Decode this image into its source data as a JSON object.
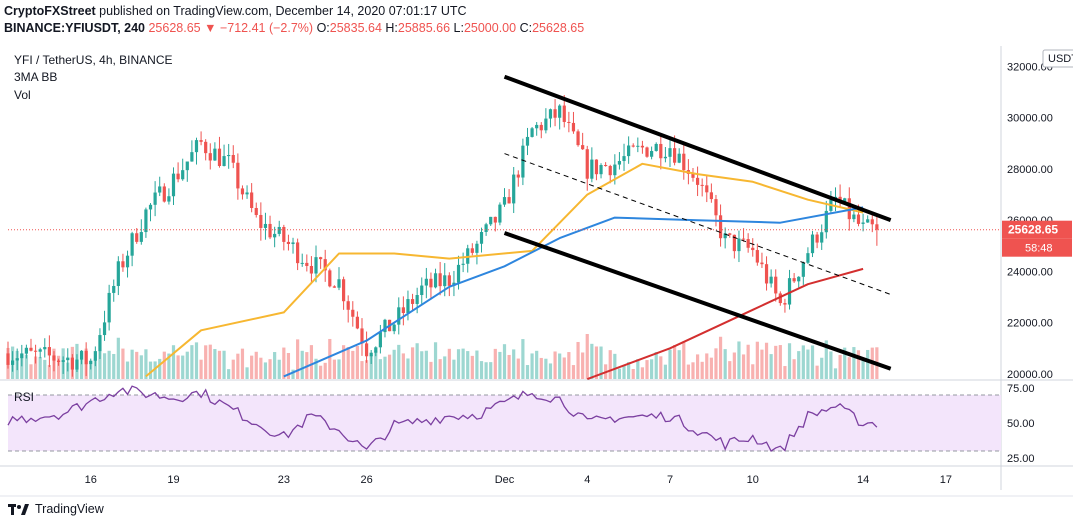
{
  "header": {
    "publisher": "CryptoFXStreet",
    "published_text": "published on TradingView.com, December 14, 2020 07:01:17 UTC",
    "symbol_line": "BINANCE:YFIUSDT, 240",
    "last": "25628.65",
    "change": "▼ −712.41 (−2.7%)",
    "o_label": "O:",
    "o": "25835.64",
    "h_label": "H:",
    "h": "25885.66",
    "l_label": "L:",
    "l": "25000.00",
    "c_label": "C:",
    "c": "25628.65"
  },
  "legend": {
    "pair": "YFI / TetherUS, 4h, BINANCE",
    "indicator": "3MA BB",
    "volume": "Vol",
    "rsi": "RSI"
  },
  "currency_badge": "USDT",
  "price_badge": "25628.65",
  "countdown_badge": "58:48",
  "branding": "TradingView",
  "colors": {
    "up": "#26a69a",
    "down": "#ef5350",
    "ma_fast": "#f7b731",
    "ma_mid": "#2e86de",
    "ma_slow": "#d32f2f",
    "rsi_line": "#7b3fa0",
    "rsi_band": "#f3e5fb"
  },
  "chart_data": [
    {
      "type": "candlestick",
      "title": "YFI / TetherUS, 4h, BINANCE",
      "y_axis_ticks": [
        "32000.00",
        "30000.00",
        "28000.00",
        "26000.00",
        "24000.00",
        "22000.00",
        "20000.00"
      ],
      "ylim": [
        19800,
        32800
      ],
      "x_ticks": [
        "16",
        "19",
        "23",
        "26",
        "Dec",
        "4",
        "7",
        "10",
        "14",
        "17"
      ],
      "x_tick_dates": [
        "2020-11-16",
        "2020-11-19",
        "2020-11-23",
        "2020-11-26",
        "2020-12-01",
        "2020-12-04",
        "2020-12-07",
        "2020-12-10",
        "2020-12-14",
        "2020-12-17"
      ],
      "x_range_dates": [
        "2020-11-13",
        "2020-12-19"
      ],
      "last_price": 25628.65,
      "price_path": [
        {
          "date": "2020-11-13",
          "value": 20800
        },
        {
          "date": "2020-11-16",
          "value": 20500
        },
        {
          "date": "2020-11-17",
          "value": 24000
        },
        {
          "date": "2020-11-18",
          "value": 26300
        },
        {
          "date": "2020-11-19",
          "value": 27600
        },
        {
          "date": "2020-11-20",
          "value": 29000
        },
        {
          "date": "2020-11-21",
          "value": 28200
        },
        {
          "date": "2020-11-22",
          "value": 26000
        },
        {
          "date": "2020-11-23",
          "value": 25200
        },
        {
          "date": "2020-11-24",
          "value": 24300
        },
        {
          "date": "2020-11-25",
          "value": 23600
        },
        {
          "date": "2020-11-26",
          "value": 21000
        },
        {
          "date": "2020-11-27",
          "value": 22000
        },
        {
          "date": "2020-11-28",
          "value": 23300
        },
        {
          "date": "2020-11-29",
          "value": 23700
        },
        {
          "date": "2020-11-30",
          "value": 25000
        },
        {
          "date": "2020-12-01",
          "value": 26500
        },
        {
          "date": "2020-12-02",
          "value": 29500
        },
        {
          "date": "2020-12-03",
          "value": 30200
        },
        {
          "date": "2020-12-04",
          "value": 28000
        },
        {
          "date": "2020-12-05",
          "value": 28200
        },
        {
          "date": "2020-12-06",
          "value": 28800
        },
        {
          "date": "2020-12-07",
          "value": 28900
        },
        {
          "date": "2020-12-08",
          "value": 27600
        },
        {
          "date": "2020-12-09",
          "value": 25200
        },
        {
          "date": "2020-12-10",
          "value": 24800
        },
        {
          "date": "2020-12-11",
          "value": 22700
        },
        {
          "date": "2020-12-12",
          "value": 24800
        },
        {
          "date": "2020-12-13",
          "value": 26800
        },
        {
          "date": "2020-12-14",
          "value": 25628.65
        }
      ],
      "trend_lines": [
        {
          "style": "solid",
          "points": [
            {
              "date": "2020-12-01",
              "value": 31600
            },
            {
              "date": "2020-12-15",
              "value": 26000
            }
          ]
        },
        {
          "style": "solid",
          "points": [
            {
              "date": "2020-12-01",
              "value": 25500
            },
            {
              "date": "2020-12-15",
              "value": 20200
            }
          ]
        },
        {
          "style": "dashed",
          "points": [
            {
              "date": "2020-12-01",
              "value": 28600
            },
            {
              "date": "2020-12-15",
              "value": 23100
            }
          ]
        }
      ],
      "moving_averages": [
        {
          "color": "ma_fast",
          "points": [
            {
              "date": "2020-11-18",
              "value": 19900
            },
            {
              "date": "2020-11-20",
              "value": 21700
            },
            {
              "date": "2020-11-23",
              "value": 22400
            },
            {
              "date": "2020-11-25",
              "value": 24700
            },
            {
              "date": "2020-11-27",
              "value": 24700
            },
            {
              "date": "2020-11-29",
              "value": 24500
            },
            {
              "date": "2020-12-02",
              "value": 24800
            },
            {
              "date": "2020-12-04",
              "value": 27000
            },
            {
              "date": "2020-12-06",
              "value": 28200
            },
            {
              "date": "2020-12-08",
              "value": 27800
            },
            {
              "date": "2020-12-10",
              "value": 27500
            },
            {
              "date": "2020-12-12",
              "value": 26800
            },
            {
              "date": "2020-12-14",
              "value": 26300
            }
          ]
        },
        {
          "color": "ma_mid",
          "points": [
            {
              "date": "2020-11-23",
              "value": 19900
            },
            {
              "date": "2020-11-26",
              "value": 21300
            },
            {
              "date": "2020-11-29",
              "value": 23400
            },
            {
              "date": "2020-12-01",
              "value": 24200
            },
            {
              "date": "2020-12-03",
              "value": 25300
            },
            {
              "date": "2020-12-05",
              "value": 26100
            },
            {
              "date": "2020-12-08",
              "value": 26000
            },
            {
              "date": "2020-12-11",
              "value": 25900
            },
            {
              "date": "2020-12-14",
              "value": 26500
            }
          ]
        },
        {
          "color": "ma_slow",
          "points": [
            {
              "date": "2020-12-04",
              "value": 19800
            },
            {
              "date": "2020-12-07",
              "value": 21000
            },
            {
              "date": "2020-12-10",
              "value": 22500
            },
            {
              "date": "2020-12-12",
              "value": 23500
            },
            {
              "date": "2020-12-14",
              "value": 24100
            }
          ]
        }
      ]
    },
    {
      "type": "line",
      "title": "RSI",
      "ylim": [
        20,
        80
      ],
      "y_axis_ticks": [
        "75.00",
        "50.00",
        "25.00"
      ],
      "bands": [
        30,
        70
      ],
      "values": [
        {
          "date": "2020-11-13",
          "value": 52
        },
        {
          "date": "2020-11-15",
          "value": 57
        },
        {
          "date": "2020-11-17",
          "value": 74
        },
        {
          "date": "2020-11-19",
          "value": 68
        },
        {
          "date": "2020-11-20",
          "value": 72
        },
        {
          "date": "2020-11-22",
          "value": 50
        },
        {
          "date": "2020-11-23",
          "value": 40
        },
        {
          "date": "2020-11-24",
          "value": 55
        },
        {
          "date": "2020-11-25",
          "value": 45
        },
        {
          "date": "2020-11-26",
          "value": 30
        },
        {
          "date": "2020-11-27",
          "value": 48
        },
        {
          "date": "2020-11-29",
          "value": 55
        },
        {
          "date": "2020-11-30",
          "value": 56
        },
        {
          "date": "2020-12-02",
          "value": 72
        },
        {
          "date": "2020-12-03",
          "value": 67
        },
        {
          "date": "2020-12-04",
          "value": 50
        },
        {
          "date": "2020-12-05",
          "value": 54
        },
        {
          "date": "2020-12-07",
          "value": 55
        },
        {
          "date": "2020-12-08",
          "value": 45
        },
        {
          "date": "2020-12-09",
          "value": 35
        },
        {
          "date": "2020-12-10",
          "value": 40
        },
        {
          "date": "2020-12-11",
          "value": 30
        },
        {
          "date": "2020-12-12",
          "value": 55
        },
        {
          "date": "2020-12-13",
          "value": 62
        },
        {
          "date": "2020-12-14",
          "value": 50
        }
      ]
    }
  ]
}
